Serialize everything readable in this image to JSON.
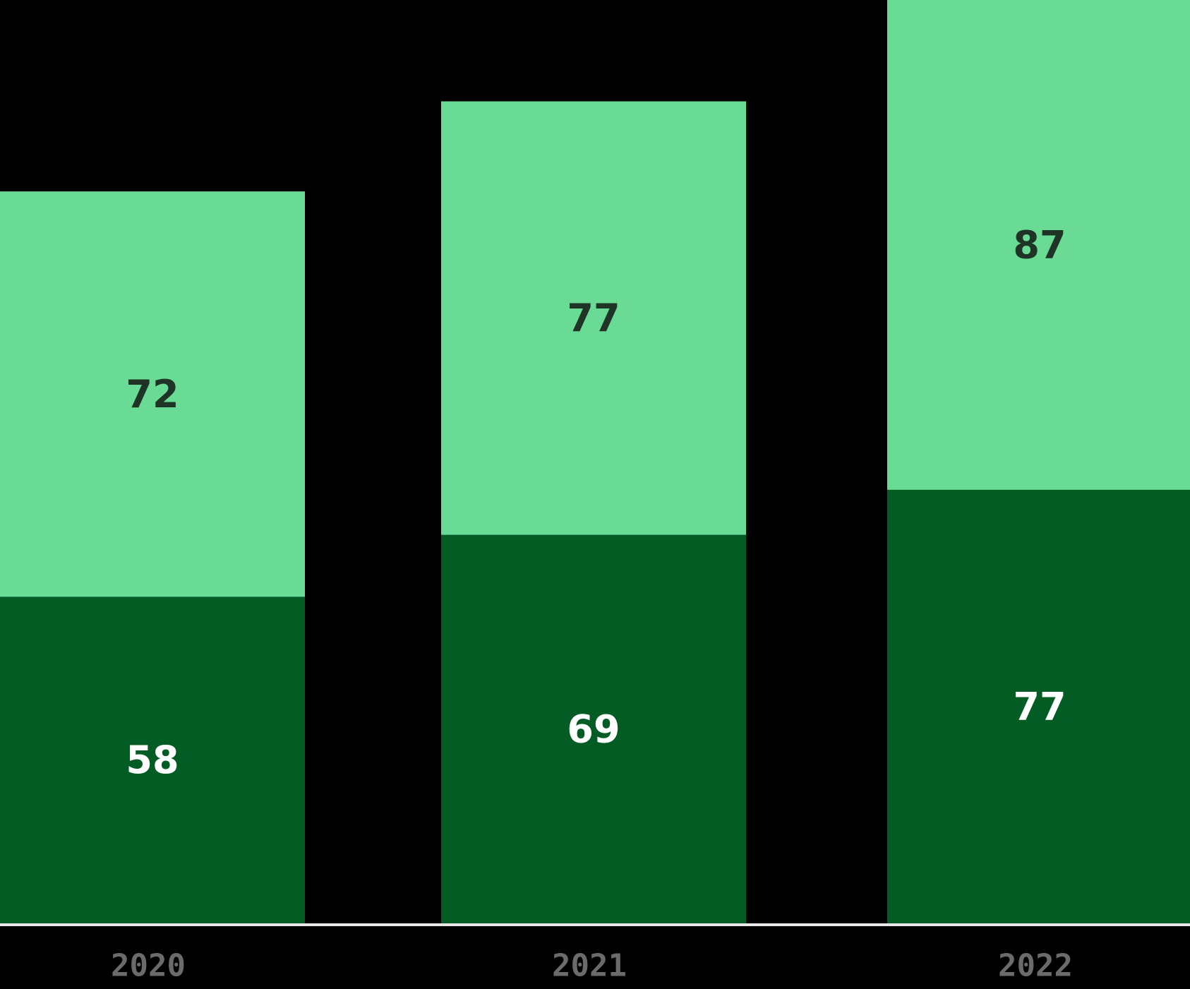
{
  "chart_data": {
    "type": "bar",
    "stacked": true,
    "categories": [
      "2020",
      "2021",
      "2022"
    ],
    "series": [
      {
        "values": [
          58,
          69,
          77
        ],
        "color": "#045c25",
        "label_color": "#ffffff"
      },
      {
        "values": [
          72,
          77,
          87
        ],
        "color": "#6adb94",
        "label_color": "#1f3327"
      }
    ],
    "ylim": [
      0,
      164
    ],
    "grid": false,
    "legend": "none",
    "tick_label_color": "#6b6b6b",
    "baseline_color": "#e8e8e8"
  }
}
